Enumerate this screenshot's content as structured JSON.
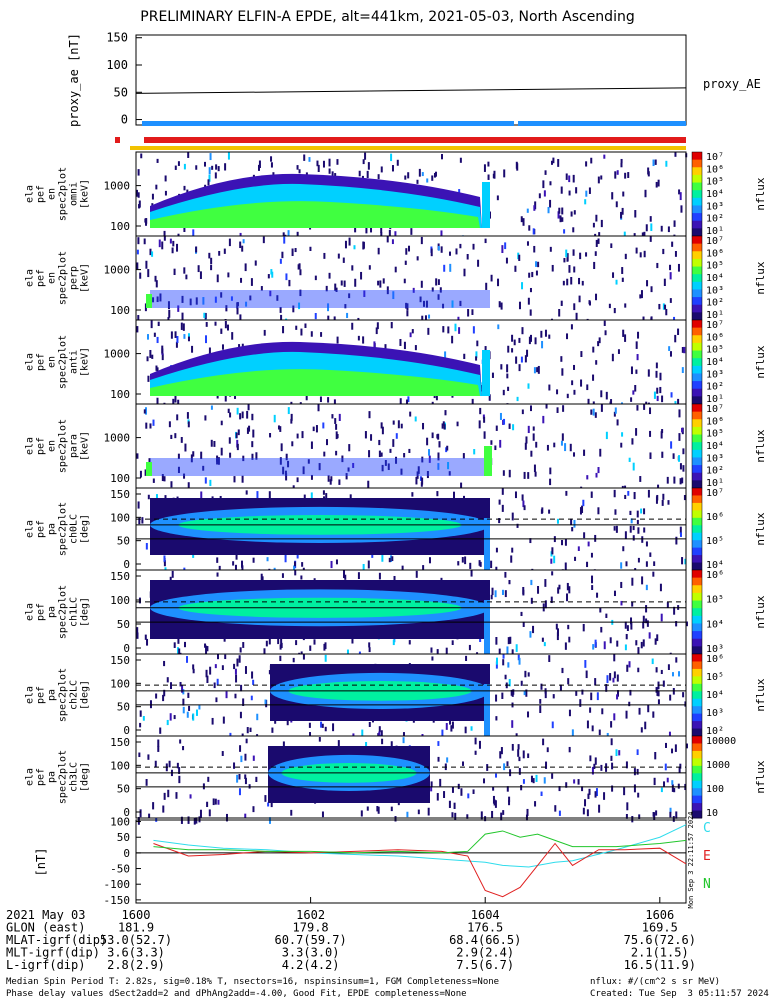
{
  "title": "PRELIMINARY ELFIN-A EPDE, alt=441km, 2021-05-03, North Ascending",
  "colors": {
    "spin_bar": "#1e90ff",
    "bar_red": "#e21b1b",
    "bar_yellow": "#f2c200",
    "bfield_C": "#2fdcec",
    "bfield_E": "#e02020",
    "bfield_N": "#22c62c"
  },
  "chart_data": [
    {
      "type": "line",
      "ylabel": "proxy_ae [nT]",
      "yticks": [
        "150",
        "100",
        "50",
        "0"
      ],
      "ylim": [
        -10,
        155
      ],
      "series": [
        {
          "name": "proxy_AE",
          "x": [
            1600.0,
            1606.3
          ],
          "values": [
            48,
            58
          ]
        }
      ]
    },
    {
      "type": "heatmap",
      "ylabel": [
        "ela",
        "pef",
        "en",
        "spec2plot",
        "omni",
        "[keV]"
      ],
      "yticks": [
        "1000",
        "100"
      ],
      "colorbar_label": "nflux",
      "colorbar_ticks": [
        "10⁷",
        "10⁶",
        "10⁵",
        "10⁴",
        "10³",
        "10²",
        "10¹"
      ]
    },
    {
      "type": "heatmap",
      "ylabel": [
        "ela",
        "pef",
        "en",
        "spec2plot",
        "perp",
        "[keV]"
      ],
      "yticks": [
        "1000",
        "100"
      ],
      "colorbar_label": "nflux",
      "colorbar_ticks": [
        "10⁷",
        "10⁶",
        "10⁵",
        "10⁴",
        "10³",
        "10²",
        "10¹"
      ]
    },
    {
      "type": "heatmap",
      "ylabel": [
        "ela",
        "pef",
        "en",
        "spec2plot",
        "anti",
        "[keV]"
      ],
      "yticks": [
        "1000",
        "100"
      ],
      "colorbar_label": "nflux",
      "colorbar_ticks": [
        "10⁷",
        "10⁶",
        "10⁵",
        "10⁴",
        "10³",
        "10²",
        "10¹"
      ]
    },
    {
      "type": "heatmap",
      "ylabel": [
        "ela",
        "pef",
        "en",
        "spec2plot",
        "para",
        "[keV]"
      ],
      "yticks": [
        "1000",
        "100"
      ],
      "colorbar_label": "nflux",
      "colorbar_ticks": [
        "10⁷",
        "10⁶",
        "10⁵",
        "10⁴",
        "10³",
        "10²",
        "10¹"
      ]
    },
    {
      "type": "heatmap",
      "ylabel": [
        "ela",
        "pef",
        "pa",
        "spec2plot",
        "ch0LC",
        "[deg]"
      ],
      "yticks": [
        "150",
        "100",
        "50",
        "0"
      ],
      "colorbar_label": "nflux",
      "colorbar_ticks": [
        "10⁷",
        "10⁶",
        "10⁵",
        "10⁴"
      ]
    },
    {
      "type": "heatmap",
      "ylabel": [
        "ela",
        "pef",
        "pa",
        "spec2plot",
        "ch1LC",
        "[deg]"
      ],
      "yticks": [
        "150",
        "100",
        "50",
        "0"
      ],
      "colorbar_label": "nflux",
      "colorbar_ticks": [
        "10⁶",
        "10⁵",
        "10⁴",
        "10³"
      ]
    },
    {
      "type": "heatmap",
      "ylabel": [
        "ela",
        "pef",
        "pa",
        "spec2plot",
        "ch2LC",
        "[deg]"
      ],
      "yticks": [
        "150",
        "100",
        "50",
        "0"
      ],
      "colorbar_label": "nflux",
      "colorbar_ticks": [
        "10⁶",
        "10⁵",
        "10⁴",
        "10³",
        "10²"
      ]
    },
    {
      "type": "heatmap",
      "ylabel": [
        "ela",
        "pef",
        "pa",
        "spec2plot",
        "ch3LC",
        "[deg]"
      ],
      "yticks": [
        "150",
        "100",
        "50",
        "0"
      ],
      "colorbar_label": "nflux",
      "colorbar_ticks": [
        "10000",
        "1000",
        "100",
        "10"
      ]
    },
    {
      "type": "line",
      "ylabel": "[nT]",
      "yticks": [
        "100",
        "50",
        "0",
        "-50",
        "-100",
        "-150"
      ],
      "ylim": [
        -160,
        105
      ],
      "series": [
        {
          "name": "C",
          "x": [
            1600.2,
            1600.6,
            1601.0,
            1601.5,
            1602.0,
            1602.5,
            1603.0,
            1603.5,
            1604.0,
            1604.2,
            1604.5,
            1604.8,
            1605.0,
            1605.5,
            1606.0,
            1606.3
          ],
          "values": [
            40,
            25,
            15,
            10,
            0,
            -5,
            -10,
            -20,
            -30,
            -40,
            -45,
            -30,
            -25,
            10,
            50,
            90
          ]
        },
        {
          "name": "E",
          "x": [
            1600.2,
            1600.6,
            1601.0,
            1601.5,
            1602.0,
            1602.5,
            1603.0,
            1603.5,
            1603.8,
            1604.0,
            1604.2,
            1604.4,
            1604.6,
            1604.8,
            1605.0,
            1605.3,
            1605.6,
            1606.0,
            1606.3
          ],
          "values": [
            30,
            -10,
            -5,
            5,
            0,
            5,
            10,
            5,
            -10,
            -120,
            -140,
            -110,
            -40,
            30,
            -40,
            10,
            10,
            15,
            -35
          ]
        },
        {
          "name": "N",
          "x": [
            1600.2,
            1600.6,
            1601.0,
            1601.5,
            1602.0,
            1602.5,
            1603.0,
            1603.5,
            1603.8,
            1604.0,
            1604.2,
            1604.4,
            1604.6,
            1604.8,
            1605.0,
            1605.5,
            1606.0,
            1606.3
          ],
          "values": [
            20,
            10,
            10,
            5,
            5,
            0,
            5,
            0,
            5,
            60,
            70,
            50,
            60,
            40,
            20,
            20,
            30,
            40
          ]
        }
      ],
      "legend": [
        "C",
        "E",
        "N"
      ]
    }
  ],
  "side_labels": {
    "proxy": "proxy_AE",
    "created_vertical": "Mon Sep  3 22:11:57 2024"
  },
  "footer": {
    "row_labels": [
      "2021 May 03",
      "GLON (east)",
      "MLAT-igrf(dip)",
      "MLT-igrf(dip)",
      "L-igrf(dip)"
    ],
    "time_ticks": [
      "1600",
      "1602",
      "1604",
      "1606"
    ],
    "glon": [
      "181.9",
      "179.8",
      "176.5",
      "169.5"
    ],
    "mlat": [
      "53.0(52.7)",
      "60.7(59.7)",
      "68.4(66.5)",
      "75.6(72.6)"
    ],
    "mlt": [
      "3.6(3.3)",
      "3.3(3.0)",
      "2.9(2.4)",
      "2.1(1.5)"
    ],
    "lval": [
      "2.8(2.9)",
      "4.2(4.2)",
      "7.5(6.7)",
      "16.5(11.9)"
    ],
    "note1": "Median Spin Period T: 2.82s, sig=0.18% T, nsectors=16, nspinsinsum=1, FGM Completeness=None",
    "note2": "Phase delay values dSect2add=2 and dPhAng2add=-4.00, Good Fit, EPDE completeness=None",
    "units": "nflux: #/(cm^2 s sr MeV)",
    "created": "Created: Tue Sep  3 05:11:57 2024"
  }
}
